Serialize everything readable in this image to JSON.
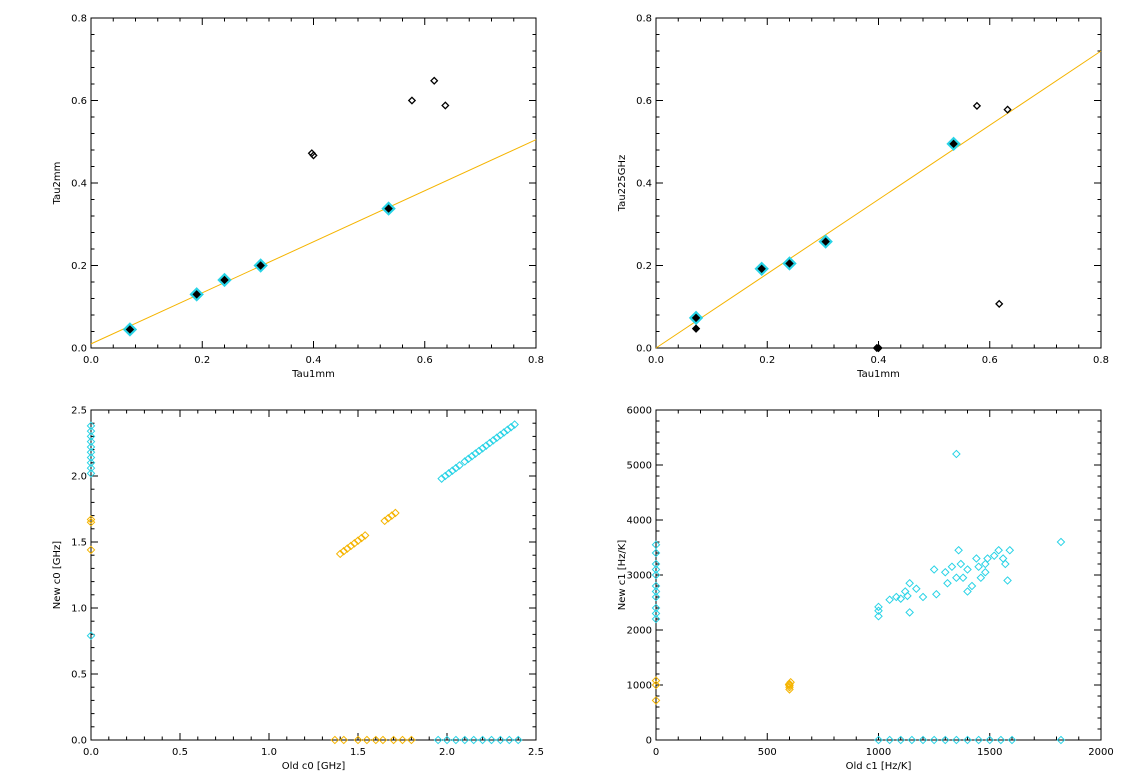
{
  "chart_data": [
    {
      "type": "scatter",
      "xlabel": "Tau1mm",
      "ylabel": "Tau2mm",
      "xlim": [
        0,
        0.8
      ],
      "ylim": [
        0,
        0.8
      ],
      "xticks": [
        "0.0",
        "0.2",
        "0.4",
        "0.6",
        "0.8"
      ],
      "yticks": [
        "0.0",
        "0.2",
        "0.4",
        "0.6",
        "0.8"
      ],
      "fit_line": {
        "color": "#f5b400",
        "points": [
          [
            0,
            0.01
          ],
          [
            0.8,
            0.505
          ]
        ]
      },
      "series": [
        {
          "style": "cyan-filled",
          "color": "#29d3e6",
          "points": [
            [
              0.07,
              0.045
            ],
            [
              0.19,
              0.13
            ],
            [
              0.24,
              0.165
            ],
            [
              0.305,
              0.2
            ],
            [
              0.535,
              0.338
            ]
          ]
        },
        {
          "style": "black-filled",
          "color": "#000000",
          "points": [
            [
              0.07,
              0.045
            ],
            [
              0.19,
              0.13
            ],
            [
              0.24,
              0.165
            ],
            [
              0.305,
              0.2
            ],
            [
              0.535,
              0.338
            ]
          ]
        },
        {
          "style": "black-open",
          "color": "#000000",
          "points": [
            [
              0.397,
              0.472
            ],
            [
              0.4,
              0.467
            ],
            [
              0.577,
              0.6
            ],
            [
              0.617,
              0.648
            ],
            [
              0.637,
              0.588
            ]
          ]
        }
      ]
    },
    {
      "type": "scatter",
      "xlabel": "Tau1mm",
      "ylabel": "Tau225GHz",
      "xlim": [
        0,
        0.8
      ],
      "ylim": [
        0,
        0.8
      ],
      "xticks": [
        "0.0",
        "0.2",
        "0.4",
        "0.6",
        "0.8"
      ],
      "yticks": [
        "0.0",
        "0.2",
        "0.4",
        "0.6",
        "0.8"
      ],
      "fit_line": {
        "color": "#f5b400",
        "points": [
          [
            0,
            0.0
          ],
          [
            0.8,
            0.72
          ]
        ]
      },
      "series": [
        {
          "style": "cyan-filled",
          "color": "#29d3e6",
          "points": [
            [
              0.072,
              0.073
            ],
            [
              0.19,
              0.192
            ],
            [
              0.24,
              0.205
            ],
            [
              0.305,
              0.258
            ],
            [
              0.535,
              0.495
            ]
          ]
        },
        {
          "style": "black-filled",
          "color": "#000000",
          "points": [
            [
              0.072,
              0.073
            ],
            [
              0.072,
              0.047
            ],
            [
              0.19,
              0.192
            ],
            [
              0.24,
              0.205
            ],
            [
              0.305,
              0.258
            ],
            [
              0.535,
              0.495
            ],
            [
              0.4,
              0.0
            ]
          ]
        },
        {
          "style": "black-open",
          "color": "#000000",
          "points": [
            [
              0.577,
              0.587
            ],
            [
              0.632,
              0.578
            ],
            [
              0.617,
              0.107
            ],
            [
              0.397,
              -0.002
            ]
          ]
        }
      ]
    },
    {
      "type": "scatter",
      "xlabel": "Old c0 [GHz]",
      "ylabel": "New c0 [GHz]",
      "xlim": [
        0,
        2.5
      ],
      "ylim": [
        0,
        2.5
      ],
      "xticks": [
        "0.0",
        "0.5",
        "1.0",
        "1.5",
        "2.0",
        "2.5"
      ],
      "yticks": [
        "0.0",
        "0.5",
        "1.0",
        "1.5",
        "2.0",
        "2.5"
      ],
      "series": [
        {
          "style": "orange-open",
          "color": "#f5b400",
          "points": [
            [
              1.4,
              1.41
            ],
            [
              1.42,
              1.43
            ],
            [
              1.44,
              1.45
            ],
            [
              1.46,
              1.47
            ],
            [
              1.48,
              1.49
            ],
            [
              1.5,
              1.51
            ],
            [
              1.52,
              1.53
            ],
            [
              1.54,
              1.55
            ],
            [
              1.65,
              1.66
            ],
            [
              1.67,
              1.68
            ],
            [
              1.69,
              1.7
            ],
            [
              1.71,
              1.72
            ],
            [
              0.0,
              1.44
            ],
            [
              0.0,
              1.65
            ],
            [
              0.0,
              1.67
            ]
          ]
        },
        {
          "style": "orange-open",
          "color": "#f5b400",
          "points": [
            [
              1.37,
              0.0
            ],
            [
              1.42,
              0.0
            ],
            [
              1.5,
              0.0
            ],
            [
              1.55,
              0.0
            ],
            [
              1.6,
              0.0
            ],
            [
              1.64,
              0.0
            ],
            [
              1.7,
              0.0
            ],
            [
              1.75,
              0.0
            ],
            [
              1.8,
              0.0
            ]
          ]
        },
        {
          "style": "cyan-open",
          "color": "#29d3e6",
          "points": [
            [
              1.97,
              1.98
            ],
            [
              1.99,
              2.0
            ],
            [
              2.01,
              2.02
            ],
            [
              2.03,
              2.04
            ],
            [
              2.05,
              2.06
            ],
            [
              2.07,
              2.08
            ],
            [
              2.1,
              2.11
            ],
            [
              2.12,
              2.13
            ],
            [
              2.14,
              2.15
            ],
            [
              2.16,
              2.17
            ],
            [
              2.18,
              2.19
            ],
            [
              2.2,
              2.21
            ],
            [
              2.22,
              2.23
            ],
            [
              2.24,
              2.25
            ],
            [
              2.26,
              2.27
            ],
            [
              2.28,
              2.29
            ],
            [
              2.3,
              2.31
            ],
            [
              2.32,
              2.33
            ],
            [
              2.34,
              2.35
            ],
            [
              2.36,
              2.37
            ],
            [
              2.38,
              2.39
            ]
          ]
        },
        {
          "style": "cyan-open",
          "color": "#29d3e6",
          "points": [
            [
              0.0,
              2.02
            ],
            [
              0.0,
              2.06
            ],
            [
              0.0,
              2.1
            ],
            [
              0.0,
              2.14
            ],
            [
              0.0,
              2.18
            ],
            [
              0.0,
              2.22
            ],
            [
              0.0,
              2.26
            ],
            [
              0.0,
              2.3
            ],
            [
              0.0,
              2.34
            ],
            [
              0.0,
              2.38
            ],
            [
              0.0,
              0.79
            ]
          ]
        },
        {
          "style": "cyan-open",
          "color": "#29d3e6",
          "points": [
            [
              1.95,
              0.0
            ],
            [
              2.0,
              0.0
            ],
            [
              2.05,
              0.0
            ],
            [
              2.1,
              0.0
            ],
            [
              2.15,
              0.0
            ],
            [
              2.2,
              0.0
            ],
            [
              2.25,
              0.0
            ],
            [
              2.3,
              0.0
            ],
            [
              2.35,
              0.0
            ],
            [
              2.4,
              0.0
            ]
          ]
        }
      ]
    },
    {
      "type": "scatter",
      "xlabel": "Old c1 [Hz/K]",
      "ylabel": "New c1 [Hz/K]",
      "xlim": [
        0,
        2000
      ],
      "ylim": [
        0,
        6000
      ],
      "xticks": [
        "0",
        "500",
        "1000",
        "1500",
        "2000"
      ],
      "yticks": [
        "0",
        "1000",
        "2000",
        "3000",
        "4000",
        "5000",
        "6000"
      ],
      "series": [
        {
          "style": "orange-open",
          "color": "#f5b400",
          "points": [
            [
              600,
              920
            ],
            [
              600,
              960
            ],
            [
              600,
              990
            ],
            [
              600,
              1020
            ],
            [
              605,
              1050
            ],
            [
              598,
              1010
            ],
            [
              0,
              1000
            ],
            [
              0,
              1080
            ],
            [
              0,
              720
            ]
          ]
        },
        {
          "style": "cyan-open",
          "color": "#29d3e6",
          "points": [
            [
              1000,
              2250
            ],
            [
              1000,
              2350
            ],
            [
              1000,
              2420
            ],
            [
              1050,
              2550
            ],
            [
              1080,
              2600
            ],
            [
              1100,
              2570
            ],
            [
              1120,
              2700
            ],
            [
              1130,
              2620
            ],
            [
              1140,
              2850
            ],
            [
              1140,
              2320
            ],
            [
              1170,
              2750
            ],
            [
              1200,
              2600
            ],
            [
              1260,
              2650
            ],
            [
              1300,
              3050
            ],
            [
              1310,
              2850
            ],
            [
              1330,
              3150
            ],
            [
              1350,
              2950
            ],
            [
              1360,
              3450
            ],
            [
              1370,
              3200
            ],
            [
              1380,
              2950
            ],
            [
              1400,
              3100
            ],
            [
              1420,
              2800
            ],
            [
              1440,
              3300
            ],
            [
              1450,
              3150
            ],
            [
              1460,
              2950
            ],
            [
              1480,
              3200
            ],
            [
              1490,
              3300
            ],
            [
              1520,
              3350
            ],
            [
              1540,
              3450
            ],
            [
              1560,
              3300
            ],
            [
              1570,
              3200
            ],
            [
              1580,
              2900
            ],
            [
              1590,
              3450
            ],
            [
              1820,
              3600
            ],
            [
              1350,
              5200
            ],
            [
              1250,
              3100
            ],
            [
              1400,
              2700
            ],
            [
              1480,
              3050
            ]
          ]
        },
        {
          "style": "cyan-open",
          "color": "#29d3e6",
          "points": [
            [
              0,
              2200
            ],
            [
              0,
              2400
            ],
            [
              0,
              2600
            ],
            [
              0,
              2800
            ],
            [
              0,
              3000
            ],
            [
              0,
              3200
            ],
            [
              0,
              3400
            ],
            [
              0,
              3550
            ],
            [
              0,
              2300
            ],
            [
              0,
              2700
            ],
            [
              0,
              3100
            ]
          ]
        },
        {
          "style": "cyan-open",
          "color": "#29d3e6",
          "points": [
            [
              1000,
              0
            ],
            [
              1050,
              0
            ],
            [
              1100,
              0
            ],
            [
              1150,
              0
            ],
            [
              1200,
              0
            ],
            [
              1250,
              0
            ],
            [
              1300,
              0
            ],
            [
              1350,
              0
            ],
            [
              1400,
              0
            ],
            [
              1450,
              0
            ],
            [
              1500,
              0
            ],
            [
              1550,
              0
            ],
            [
              1600,
              0
            ],
            [
              1820,
              0
            ]
          ]
        }
      ]
    }
  ]
}
